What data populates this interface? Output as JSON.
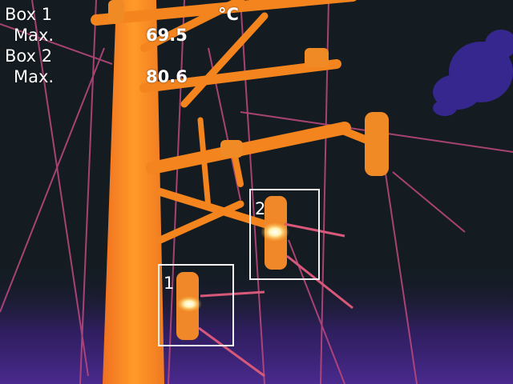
{
  "overlay": {
    "unit": "°C",
    "measurements": [
      {
        "box_label": "Box 1",
        "stat_label": "Max.",
        "value": "69.5"
      },
      {
        "box_label": "Box 2",
        "stat_label": "Max.",
        "value": "80.6"
      }
    ]
  },
  "roi_boxes": [
    {
      "id": "1"
    },
    {
      "id": "2"
    }
  ],
  "palette": {
    "background": "#141c22",
    "hot": "#ff9a1e",
    "warm": "#f07a2a",
    "cool_line": "#c04a7a",
    "cold_purple": "#4a2a8e",
    "hotspot": "#fff6c8",
    "box_stroke": "#f2f2f2"
  }
}
